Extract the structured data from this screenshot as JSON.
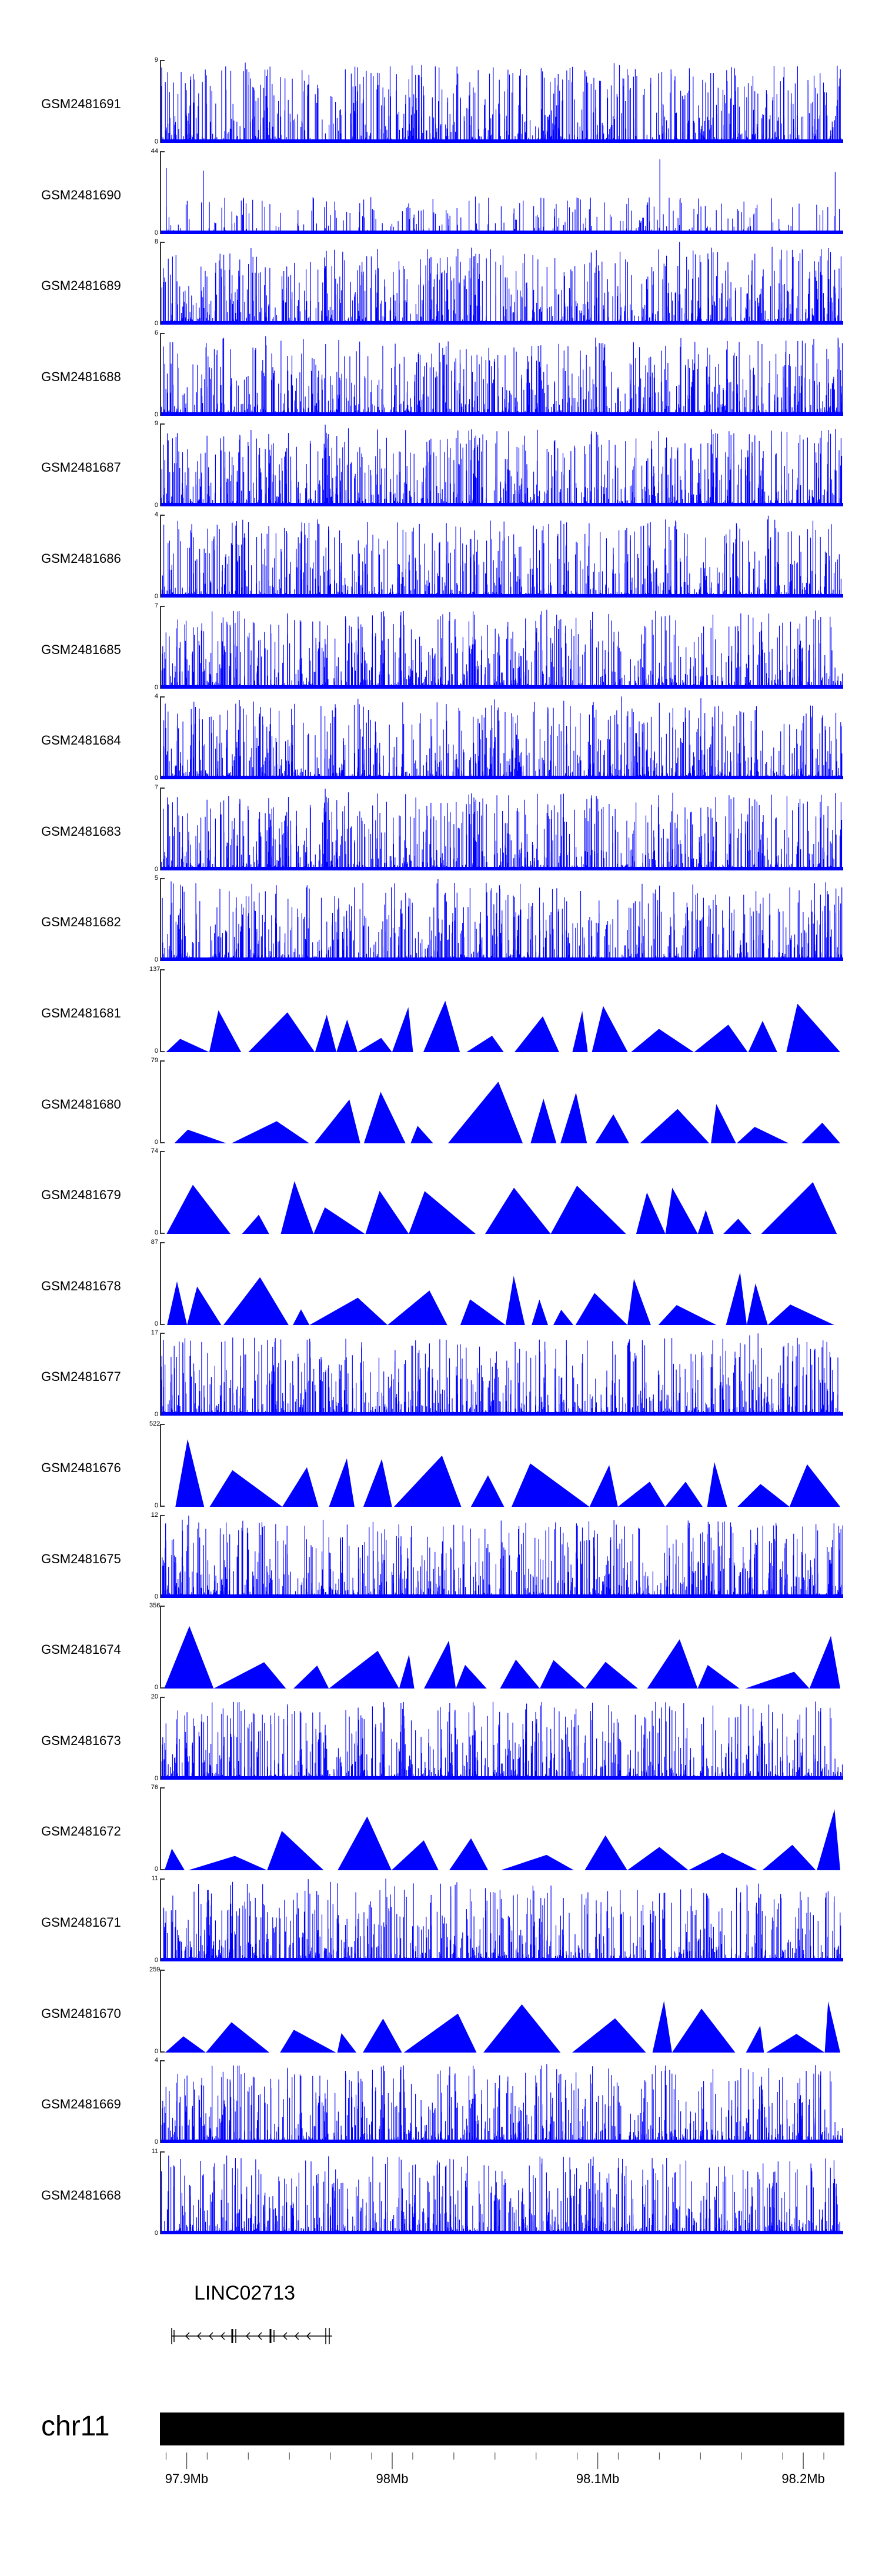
{
  "tracks": [
    {
      "label": "GSM2481691",
      "ymax": "9",
      "ymin": "0",
      "style": "dense",
      "seed": 11
    },
    {
      "label": "GSM2481690",
      "ymax": "44",
      "ymin": "0",
      "style": "sparse",
      "seed": 23
    },
    {
      "label": "GSM2481689",
      "ymax": "8",
      "ymin": "0",
      "style": "dense",
      "seed": 37
    },
    {
      "label": "GSM2481688",
      "ymax": "6",
      "ymin": "0",
      "style": "dense",
      "seed": 41
    },
    {
      "label": "GSM2481687",
      "ymax": "9",
      "ymin": "0",
      "style": "dense",
      "seed": 53
    },
    {
      "label": "GSM2481686",
      "ymax": "4",
      "ymin": "0",
      "style": "dense",
      "seed": 67
    },
    {
      "label": "GSM2481685",
      "ymax": "7",
      "ymin": "0",
      "style": "dense",
      "seed": 71
    },
    {
      "label": "GSM2481684",
      "ymax": "4",
      "ymin": "0",
      "style": "dense",
      "seed": 83
    },
    {
      "label": "GSM2481683",
      "ymax": "7",
      "ymin": "0",
      "style": "dense",
      "seed": 97
    },
    {
      "label": "GSM2481682",
      "ymax": "5",
      "ymin": "0",
      "style": "dense",
      "seed": 101
    },
    {
      "label": "GSM2481681",
      "ymax": "137",
      "ymin": "0",
      "style": "peaks",
      "seed": 113
    },
    {
      "label": "GSM2481680",
      "ymax": "79",
      "ymin": "0",
      "style": "peaks",
      "seed": 127
    },
    {
      "label": "GSM2481679",
      "ymax": "74",
      "ymin": "0",
      "style": "peaks",
      "seed": 131
    },
    {
      "label": "GSM2481678",
      "ymax": "87",
      "ymin": "0",
      "style": "peaks",
      "seed": 149
    },
    {
      "label": "GSM2481677",
      "ymax": "17",
      "ymin": "0",
      "style": "dense",
      "seed": 151
    },
    {
      "label": "GSM2481676",
      "ymax": "522",
      "ymin": "0",
      "style": "peaks",
      "seed": 163
    },
    {
      "label": "GSM2481675",
      "ymax": "12",
      "ymin": "0",
      "style": "dense",
      "seed": 173
    },
    {
      "label": "GSM2481674",
      "ymax": "356",
      "ymin": "0",
      "style": "peaks",
      "seed": 181
    },
    {
      "label": "GSM2481673",
      "ymax": "20",
      "ymin": "0",
      "style": "dense",
      "seed": 191
    },
    {
      "label": "GSM2481672",
      "ymax": "76",
      "ymin": "0",
      "style": "peaks",
      "seed": 193
    },
    {
      "label": "GSM2481671",
      "ymax": "11",
      "ymin": "0",
      "style": "dense",
      "seed": 197
    },
    {
      "label": "GSM2481670",
      "ymax": "259",
      "ymin": "0",
      "style": "peaks",
      "seed": 211
    },
    {
      "label": "GSM2481669",
      "ymax": "4",
      "ymin": "0",
      "style": "dense",
      "seed": 223
    },
    {
      "label": "GSM2481668",
      "ymax": "11",
      "ymin": "0",
      "style": "dense",
      "seed": 227
    }
  ],
  "gene": {
    "name": "LINC02713"
  },
  "chromosome": {
    "label": "chr11"
  },
  "genome_axis": {
    "ticks": [
      {
        "pos_mb": 97.9,
        "label": "97.9Mb"
      },
      {
        "pos_mb": 98.0,
        "label": "98Mb"
      },
      {
        "pos_mb": 98.1,
        "label": "98.1Mb"
      },
      {
        "pos_mb": 98.2,
        "label": "98.2Mb"
      }
    ],
    "range_mb": [
      97.887,
      98.22
    ]
  },
  "colors": {
    "signal": "#0000ff",
    "axis": "#333333",
    "ideogram": "#000000"
  }
}
